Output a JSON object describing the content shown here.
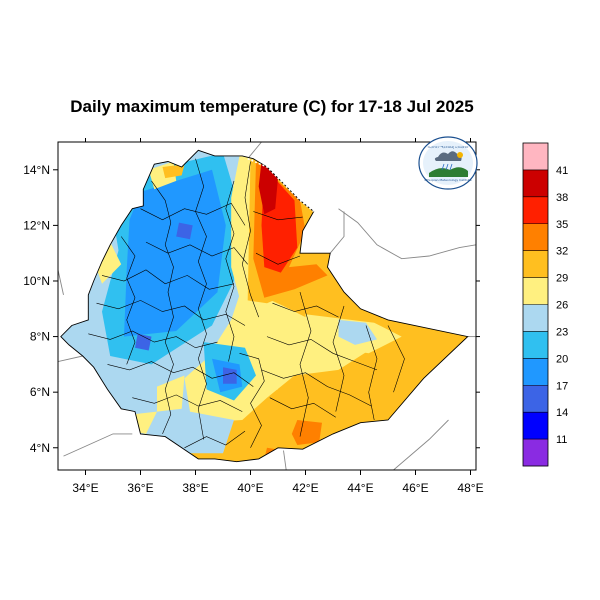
{
  "title": "Daily maximum temperature (C) for 17-18 Jul 2025",
  "map": {
    "lon_range": [
      33,
      48.2
    ],
    "lat_range": [
      3.2,
      15
    ]
  },
  "x_ticks": [
    {
      "value": 34,
      "label": "34°E"
    },
    {
      "value": 36,
      "label": "36°E"
    },
    {
      "value": 38,
      "label": "38°E"
    },
    {
      "value": 40,
      "label": "40°E"
    },
    {
      "value": 42,
      "label": "42°E"
    },
    {
      "value": 44,
      "label": "44°E"
    },
    {
      "value": 46,
      "label": "46°E"
    },
    {
      "value": 48,
      "label": "48°E"
    }
  ],
  "y_ticks": [
    {
      "value": 14,
      "label": "14°N"
    },
    {
      "value": 12,
      "label": "12°N"
    },
    {
      "value": 10,
      "label": "10°N"
    },
    {
      "value": 8,
      "label": "8°N"
    },
    {
      "value": 6,
      "label": "6°N"
    },
    {
      "value": 4,
      "label": "4°N"
    }
  ],
  "colorbar": {
    "colors": [
      "#ffb6c1",
      "#cc0000",
      "#ff2000",
      "#ff8000",
      "#ffbf20",
      "#fff080",
      "#acd8f0",
      "#30c0f0",
      "#2098ff",
      "#3c64e6",
      "#0000ff",
      "#8a2be2"
    ],
    "labels": [
      "41",
      "38",
      "35",
      "32",
      "29",
      "26",
      "23",
      "20",
      "17",
      "14",
      "11"
    ]
  },
  "logo": {
    "text_top": "የኢትዮጵያ ሚቲዎሮሎጂ ኢንስቲትዩት",
    "text_bottom": "Ethiopian Meteorology Institute"
  },
  "palette": {
    "boundary": "#000000",
    "neighbor": "#888888",
    "frame": "#000000"
  }
}
